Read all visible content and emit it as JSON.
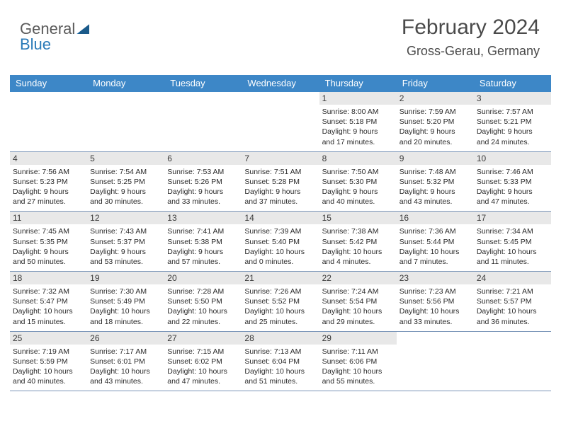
{
  "logo": {
    "text1": "General",
    "text2": "Blue"
  },
  "header": {
    "title": "February 2024",
    "location": "Gross-Gerau, Germany"
  },
  "colors": {
    "header_bg": "#3d87c7",
    "daynum_bg": "#e8e8e8",
    "week_border": "#7a95b8",
    "text_main": "#2a2a2a",
    "title_color": "#4a4a4a"
  },
  "dayNames": [
    "Sunday",
    "Monday",
    "Tuesday",
    "Wednesday",
    "Thursday",
    "Friday",
    "Saturday"
  ],
  "weeks": [
    [
      null,
      null,
      null,
      null,
      {
        "n": "1",
        "sr": "Sunrise: 8:00 AM",
        "ss": "Sunset: 5:18 PM",
        "d1": "Daylight: 9 hours",
        "d2": "and 17 minutes."
      },
      {
        "n": "2",
        "sr": "Sunrise: 7:59 AM",
        "ss": "Sunset: 5:20 PM",
        "d1": "Daylight: 9 hours",
        "d2": "and 20 minutes."
      },
      {
        "n": "3",
        "sr": "Sunrise: 7:57 AM",
        "ss": "Sunset: 5:21 PM",
        "d1": "Daylight: 9 hours",
        "d2": "and 24 minutes."
      }
    ],
    [
      {
        "n": "4",
        "sr": "Sunrise: 7:56 AM",
        "ss": "Sunset: 5:23 PM",
        "d1": "Daylight: 9 hours",
        "d2": "and 27 minutes."
      },
      {
        "n": "5",
        "sr": "Sunrise: 7:54 AM",
        "ss": "Sunset: 5:25 PM",
        "d1": "Daylight: 9 hours",
        "d2": "and 30 minutes."
      },
      {
        "n": "6",
        "sr": "Sunrise: 7:53 AM",
        "ss": "Sunset: 5:26 PM",
        "d1": "Daylight: 9 hours",
        "d2": "and 33 minutes."
      },
      {
        "n": "7",
        "sr": "Sunrise: 7:51 AM",
        "ss": "Sunset: 5:28 PM",
        "d1": "Daylight: 9 hours",
        "d2": "and 37 minutes."
      },
      {
        "n": "8",
        "sr": "Sunrise: 7:50 AM",
        "ss": "Sunset: 5:30 PM",
        "d1": "Daylight: 9 hours",
        "d2": "and 40 minutes."
      },
      {
        "n": "9",
        "sr": "Sunrise: 7:48 AM",
        "ss": "Sunset: 5:32 PM",
        "d1": "Daylight: 9 hours",
        "d2": "and 43 minutes."
      },
      {
        "n": "10",
        "sr": "Sunrise: 7:46 AM",
        "ss": "Sunset: 5:33 PM",
        "d1": "Daylight: 9 hours",
        "d2": "and 47 minutes."
      }
    ],
    [
      {
        "n": "11",
        "sr": "Sunrise: 7:45 AM",
        "ss": "Sunset: 5:35 PM",
        "d1": "Daylight: 9 hours",
        "d2": "and 50 minutes."
      },
      {
        "n": "12",
        "sr": "Sunrise: 7:43 AM",
        "ss": "Sunset: 5:37 PM",
        "d1": "Daylight: 9 hours",
        "d2": "and 53 minutes."
      },
      {
        "n": "13",
        "sr": "Sunrise: 7:41 AM",
        "ss": "Sunset: 5:38 PM",
        "d1": "Daylight: 9 hours",
        "d2": "and 57 minutes."
      },
      {
        "n": "14",
        "sr": "Sunrise: 7:39 AM",
        "ss": "Sunset: 5:40 PM",
        "d1": "Daylight: 10 hours",
        "d2": "and 0 minutes."
      },
      {
        "n": "15",
        "sr": "Sunrise: 7:38 AM",
        "ss": "Sunset: 5:42 PM",
        "d1": "Daylight: 10 hours",
        "d2": "and 4 minutes."
      },
      {
        "n": "16",
        "sr": "Sunrise: 7:36 AM",
        "ss": "Sunset: 5:44 PM",
        "d1": "Daylight: 10 hours",
        "d2": "and 7 minutes."
      },
      {
        "n": "17",
        "sr": "Sunrise: 7:34 AM",
        "ss": "Sunset: 5:45 PM",
        "d1": "Daylight: 10 hours",
        "d2": "and 11 minutes."
      }
    ],
    [
      {
        "n": "18",
        "sr": "Sunrise: 7:32 AM",
        "ss": "Sunset: 5:47 PM",
        "d1": "Daylight: 10 hours",
        "d2": "and 15 minutes."
      },
      {
        "n": "19",
        "sr": "Sunrise: 7:30 AM",
        "ss": "Sunset: 5:49 PM",
        "d1": "Daylight: 10 hours",
        "d2": "and 18 minutes."
      },
      {
        "n": "20",
        "sr": "Sunrise: 7:28 AM",
        "ss": "Sunset: 5:50 PM",
        "d1": "Daylight: 10 hours",
        "d2": "and 22 minutes."
      },
      {
        "n": "21",
        "sr": "Sunrise: 7:26 AM",
        "ss": "Sunset: 5:52 PM",
        "d1": "Daylight: 10 hours",
        "d2": "and 25 minutes."
      },
      {
        "n": "22",
        "sr": "Sunrise: 7:24 AM",
        "ss": "Sunset: 5:54 PM",
        "d1": "Daylight: 10 hours",
        "d2": "and 29 minutes."
      },
      {
        "n": "23",
        "sr": "Sunrise: 7:23 AM",
        "ss": "Sunset: 5:56 PM",
        "d1": "Daylight: 10 hours",
        "d2": "and 33 minutes."
      },
      {
        "n": "24",
        "sr": "Sunrise: 7:21 AM",
        "ss": "Sunset: 5:57 PM",
        "d1": "Daylight: 10 hours",
        "d2": "and 36 minutes."
      }
    ],
    [
      {
        "n": "25",
        "sr": "Sunrise: 7:19 AM",
        "ss": "Sunset: 5:59 PM",
        "d1": "Daylight: 10 hours",
        "d2": "and 40 minutes."
      },
      {
        "n": "26",
        "sr": "Sunrise: 7:17 AM",
        "ss": "Sunset: 6:01 PM",
        "d1": "Daylight: 10 hours",
        "d2": "and 43 minutes."
      },
      {
        "n": "27",
        "sr": "Sunrise: 7:15 AM",
        "ss": "Sunset: 6:02 PM",
        "d1": "Daylight: 10 hours",
        "d2": "and 47 minutes."
      },
      {
        "n": "28",
        "sr": "Sunrise: 7:13 AM",
        "ss": "Sunset: 6:04 PM",
        "d1": "Daylight: 10 hours",
        "d2": "and 51 minutes."
      },
      {
        "n": "29",
        "sr": "Sunrise: 7:11 AM",
        "ss": "Sunset: 6:06 PM",
        "d1": "Daylight: 10 hours",
        "d2": "and 55 minutes."
      },
      null,
      null
    ]
  ]
}
